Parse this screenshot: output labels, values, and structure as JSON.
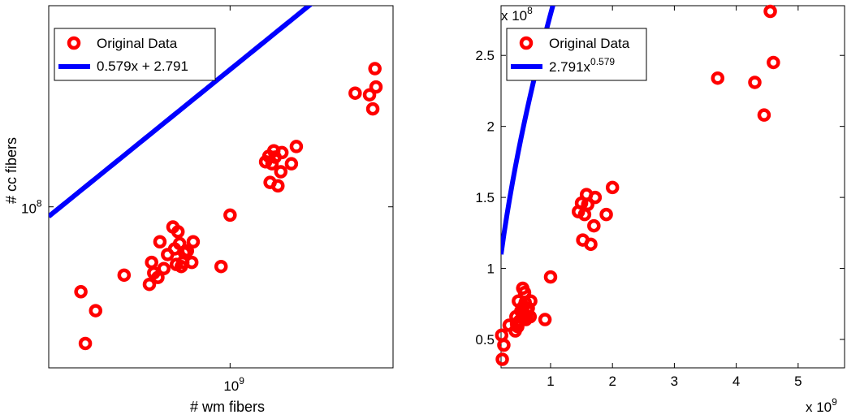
{
  "chart_data": [
    {
      "type": "scatter",
      "scale": "log-log",
      "xlabel": "# wm fibers",
      "ylabel": "# cc fibers",
      "xlim": [
        150000000,
        5500000000
      ],
      "ylim": [
        30000000,
        450000000
      ],
      "x_ticks": [
        {
          "value": 1000000000,
          "label": "10",
          "exp": "9"
        }
      ],
      "y_ticks": [
        {
          "value": 100000000,
          "label": "10",
          "exp": "8"
        }
      ],
      "legend": {
        "position": "top-left",
        "entries": [
          {
            "label": "Original Data",
            "kind": "marker",
            "color": "#ff0000"
          },
          {
            "label": "0.579x + 2.791",
            "kind": "line",
            "color": "#0000ff"
          }
        ]
      },
      "series": [
        {
          "name": "Original Data",
          "color": "#ff0000",
          "x": [
            210000000.0,
            220000000.0,
            245000000.0,
            330000000.0,
            430000000.0,
            440000000.0,
            450000000.0,
            470000000.0,
            480000000.0,
            500000000.0,
            520000000.0,
            550000000.0,
            560000000.0,
            570000000.0,
            580000000.0,
            590000000.0,
            600000000.0,
            610000000.0,
            620000000.0,
            640000000.0,
            670000000.0,
            680000000.0,
            910000000.0,
            1000000000.0,
            1450000000.0,
            1500000000.0,
            1520000000.0,
            1550000000.0,
            1580000000.0,
            1600000000.0,
            1650000000.0,
            1700000000.0,
            1720000000.0,
            1900000000.0,
            2000000000.0,
            3700000000.0,
            4300000000.0,
            4450000000.0,
            4550000000.0,
            4600000000.0
          ],
          "y": [
            53000000.0,
            36000000.0,
            46000000.0,
            60000000.0,
            56000000.0,
            66000000.0,
            61000000.0,
            59000000.0,
            77000000.0,
            63000000.0,
            70000000.0,
            86000000.0,
            73000000.0,
            65000000.0,
            83000000.0,
            76000000.0,
            64000000.0,
            66000000.0,
            71000000.0,
            72000000.0,
            66000000.0,
            77000000.0,
            64000000.0,
            94000000.0,
            140000000.0,
            146000000.0,
            120000000.0,
            138000000.0,
            152000000.0,
            145000000.0,
            117000000.0,
            130000000.0,
            150000000.0,
            138000000.0,
            157000000.0,
            234000000.0,
            231000000.0,
            208000000.0,
            281000000.0,
            245000000.0
          ]
        },
        {
          "name": "0.579x + 2.791",
          "color": "#0000ff",
          "fit": {
            "model": "power",
            "coefficient": 2.791,
            "exponent": 0.579
          },
          "x": [
            150000000,
            5500000000
          ]
        }
      ]
    },
    {
      "type": "scatter",
      "scale": "linear",
      "xlabel": "",
      "ylabel": "",
      "xlim": [
        200000000,
        5750000000
      ],
      "ylim": [
        30000000,
        285000000
      ],
      "x_multiplier": {
        "base": "x 10",
        "exp": "9"
      },
      "y_multiplier": {
        "base": "x 10",
        "exp": "8"
      },
      "x_ticks": [
        {
          "value": 1000000000,
          "label": "1"
        },
        {
          "value": 2000000000,
          "label": "2"
        },
        {
          "value": 3000000000,
          "label": "3"
        },
        {
          "value": 4000000000,
          "label": "4"
        },
        {
          "value": 5000000000,
          "label": "5"
        }
      ],
      "y_ticks": [
        {
          "value": 50000000,
          "label": "0.5"
        },
        {
          "value": 100000000,
          "label": "1"
        },
        {
          "value": 150000000,
          "label": "1.5"
        },
        {
          "value": 200000000,
          "label": "2"
        },
        {
          "value": 250000000,
          "label": "2.5"
        }
      ],
      "legend": {
        "position": "top-left",
        "entries": [
          {
            "label": "Original Data",
            "kind": "marker",
            "color": "#ff0000"
          },
          {
            "label": "2.791x",
            "sup": "0.579",
            "kind": "line",
            "color": "#0000ff"
          }
        ]
      },
      "series": [
        {
          "name": "Original Data",
          "color": "#ff0000",
          "x": [
            210000000.0,
            220000000.0,
            245000000.0,
            330000000.0,
            430000000.0,
            440000000.0,
            450000000.0,
            470000000.0,
            480000000.0,
            500000000.0,
            520000000.0,
            550000000.0,
            560000000.0,
            570000000.0,
            580000000.0,
            590000000.0,
            600000000.0,
            610000000.0,
            620000000.0,
            640000000.0,
            670000000.0,
            680000000.0,
            910000000.0,
            1000000000.0,
            1450000000.0,
            1500000000.0,
            1520000000.0,
            1550000000.0,
            1580000000.0,
            1600000000.0,
            1650000000.0,
            1700000000.0,
            1720000000.0,
            1900000000.0,
            2000000000.0,
            3700000000.0,
            4300000000.0,
            4450000000.0,
            4550000000.0,
            4600000000.0
          ],
          "y": [
            53000000.0,
            36000000.0,
            46000000.0,
            60000000.0,
            56000000.0,
            66000000.0,
            61000000.0,
            59000000.0,
            77000000.0,
            63000000.0,
            70000000.0,
            86000000.0,
            73000000.0,
            65000000.0,
            83000000.0,
            76000000.0,
            64000000.0,
            66000000.0,
            71000000.0,
            72000000.0,
            66000000.0,
            77000000.0,
            64000000.0,
            94000000.0,
            140000000.0,
            146000000.0,
            120000000.0,
            138000000.0,
            152000000.0,
            145000000.0,
            117000000.0,
            130000000.0,
            150000000.0,
            138000000.0,
            157000000.0,
            234000000.0,
            231000000.0,
            208000000.0,
            281000000.0,
            245000000.0
          ]
        },
        {
          "name": "2.791x^0.579",
          "color": "#0000ff",
          "fit": {
            "model": "power",
            "coefficient": 2.791,
            "exponent": 0.579
          },
          "x": [
            200000000,
            5750000000
          ]
        }
      ]
    }
  ]
}
